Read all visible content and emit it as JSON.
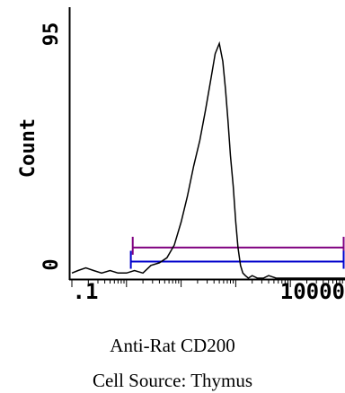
{
  "chart_data": {
    "type": "area",
    "title": "",
    "xlabel": "Anti-Rat CD200",
    "ylabel": "Count",
    "subtitle": "Cell Source:  Thymus",
    "xscale": "log",
    "xlim": [
      0.1,
      10000
    ],
    "ylim": [
      0,
      95
    ],
    "x_tick_labels": [
      ".1",
      "10000"
    ],
    "y_tick_labels": [
      "0",
      "95"
    ],
    "grid": false,
    "legend": "none",
    "series": [
      {
        "color": "#000000",
        "x": [
          0.1,
          0.13,
          0.18,
          0.25,
          0.35,
          0.5,
          0.7,
          1.0,
          1.4,
          2.0,
          2.8,
          4.0,
          5.5,
          7.5,
          10,
          13,
          17,
          22,
          28,
          35,
          42,
          50,
          58,
          65,
          72,
          80,
          90,
          100,
          110,
          122,
          135,
          150,
          170,
          200,
          250,
          320,
          400,
          550,
          800,
          1200,
          2000,
          4000,
          10000
        ],
        "y": [
          2,
          3,
          4,
          3,
          2,
          3,
          2,
          2,
          3,
          2,
          5,
          6,
          8,
          13,
          22,
          32,
          44,
          54,
          66,
          78,
          88,
          92,
          85,
          74,
          62,
          48,
          36,
          22,
          12,
          5,
          2,
          1,
          0,
          1,
          0,
          0,
          1,
          0,
          0,
          0,
          0,
          0,
          0
        ]
      }
    ],
    "gates": [
      {
        "color": "#800080",
        "x_start": 1.3,
        "x_end": 10000,
        "level": 12
      },
      {
        "color": "#0000cc",
        "x_start": 1.2,
        "x_end": 10000,
        "level": 6.5
      }
    ]
  }
}
